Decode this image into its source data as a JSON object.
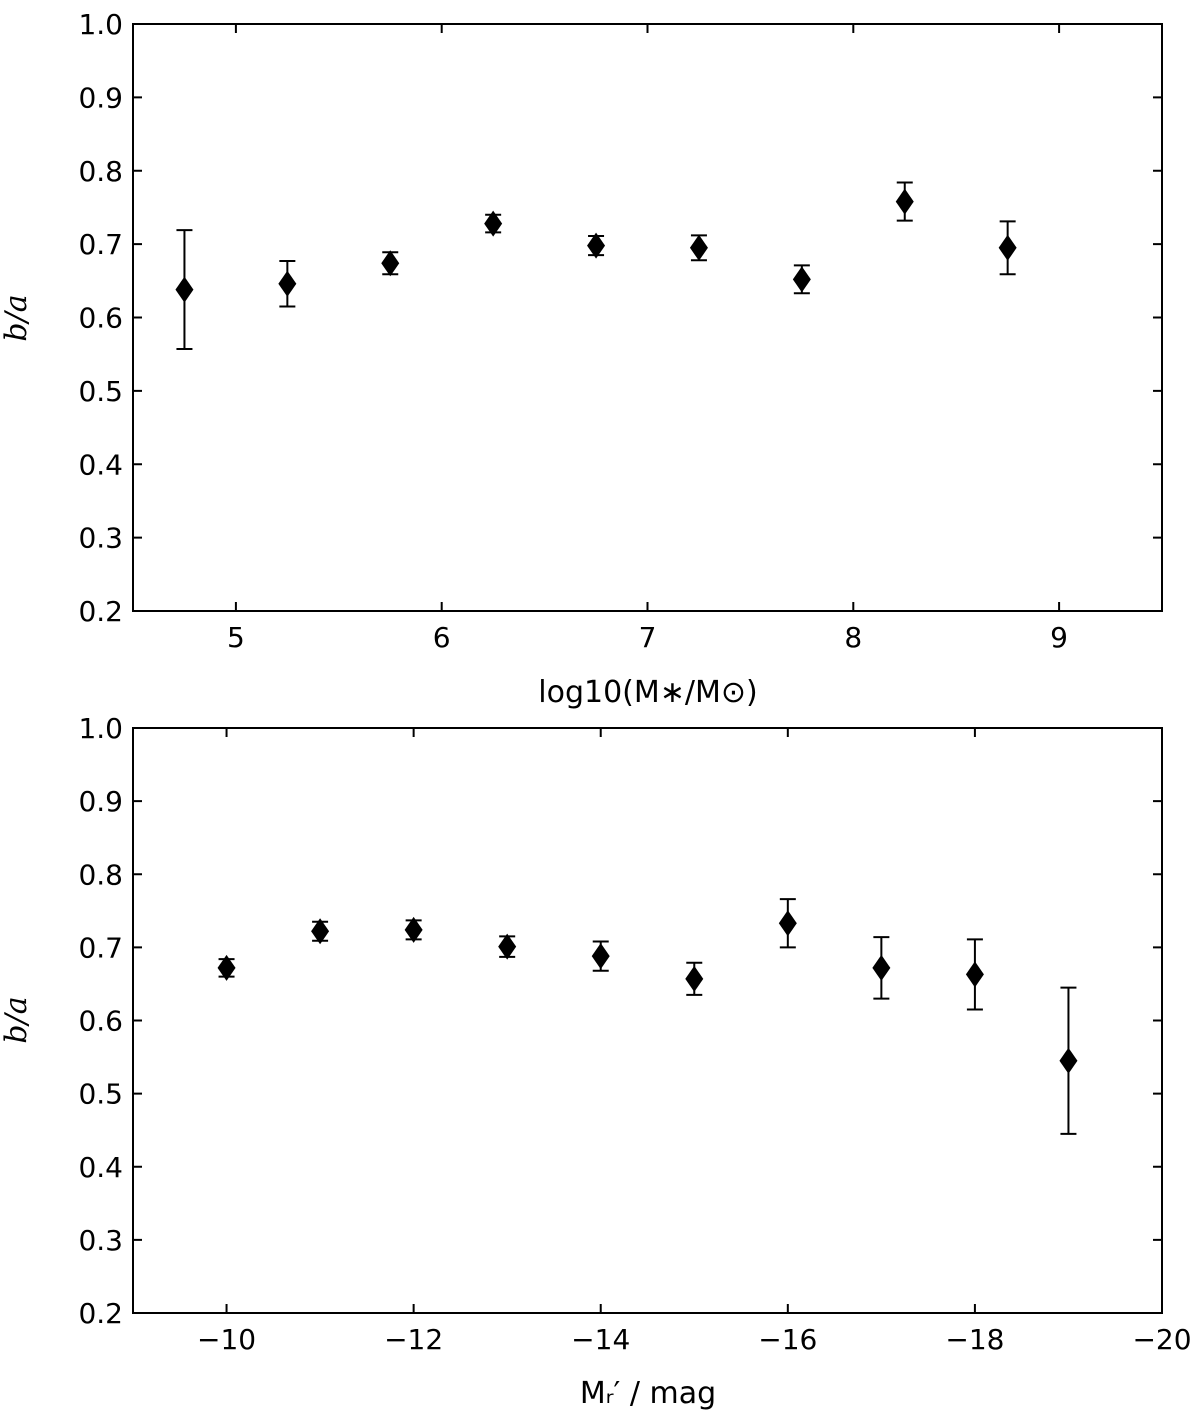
{
  "chart_data": [
    {
      "type": "scatter",
      "xlabel": "log10(M∗/M⊙)",
      "ylabel": "b/a",
      "xlim": [
        4.5,
        9.5
      ],
      "ylim": [
        0.2,
        1.0
      ],
      "xticks": [
        5,
        6,
        7,
        8,
        9
      ],
      "xtick_labels": [
        "5",
        "6",
        "7",
        "8",
        "9"
      ],
      "yticks": [
        0.2,
        0.3,
        0.4,
        0.5,
        0.6,
        0.7,
        0.8,
        0.9,
        1.0
      ],
      "ytick_labels": [
        "0.2",
        "0.3",
        "0.4",
        "0.5",
        "0.6",
        "0.7",
        "0.8",
        "0.9",
        "1.0"
      ],
      "grid": false,
      "marker": "diamond",
      "color": "#000000",
      "x": [
        4.75,
        5.25,
        5.75,
        6.25,
        6.75,
        7.25,
        7.75,
        8.25,
        8.75
      ],
      "y": [
        0.638,
        0.646,
        0.674,
        0.728,
        0.698,
        0.695,
        0.652,
        0.758,
        0.695
      ],
      "yerr": [
        0.081,
        0.031,
        0.015,
        0.012,
        0.013,
        0.017,
        0.019,
        0.026,
        0.036
      ]
    },
    {
      "type": "scatter",
      "xlabel": "Mᵣ′ / mag",
      "ylabel": "b/a",
      "xlim": [
        -9,
        -20
      ],
      "ylim": [
        0.2,
        1.0
      ],
      "xticks": [
        -10,
        -12,
        -14,
        -16,
        -18,
        -20
      ],
      "xtick_labels": [
        "−10",
        "−12",
        "−14",
        "−16",
        "−18",
        "−20"
      ],
      "yticks": [
        0.2,
        0.3,
        0.4,
        0.5,
        0.6,
        0.7,
        0.8,
        0.9,
        1.0
      ],
      "ytick_labels": [
        "0.2",
        "0.3",
        "0.4",
        "0.5",
        "0.6",
        "0.7",
        "0.8",
        "0.9",
        "1.0"
      ],
      "grid": false,
      "marker": "diamond",
      "color": "#000000",
      "x": [
        -10,
        -11,
        -12,
        -13,
        -14,
        -15,
        -16,
        -17,
        -18,
        -19
      ],
      "y": [
        0.672,
        0.722,
        0.724,
        0.701,
        0.688,
        0.657,
        0.733,
        0.672,
        0.663,
        0.545
      ],
      "yerr": [
        0.012,
        0.013,
        0.013,
        0.014,
        0.02,
        0.022,
        0.033,
        0.042,
        0.048,
        0.1
      ]
    }
  ]
}
